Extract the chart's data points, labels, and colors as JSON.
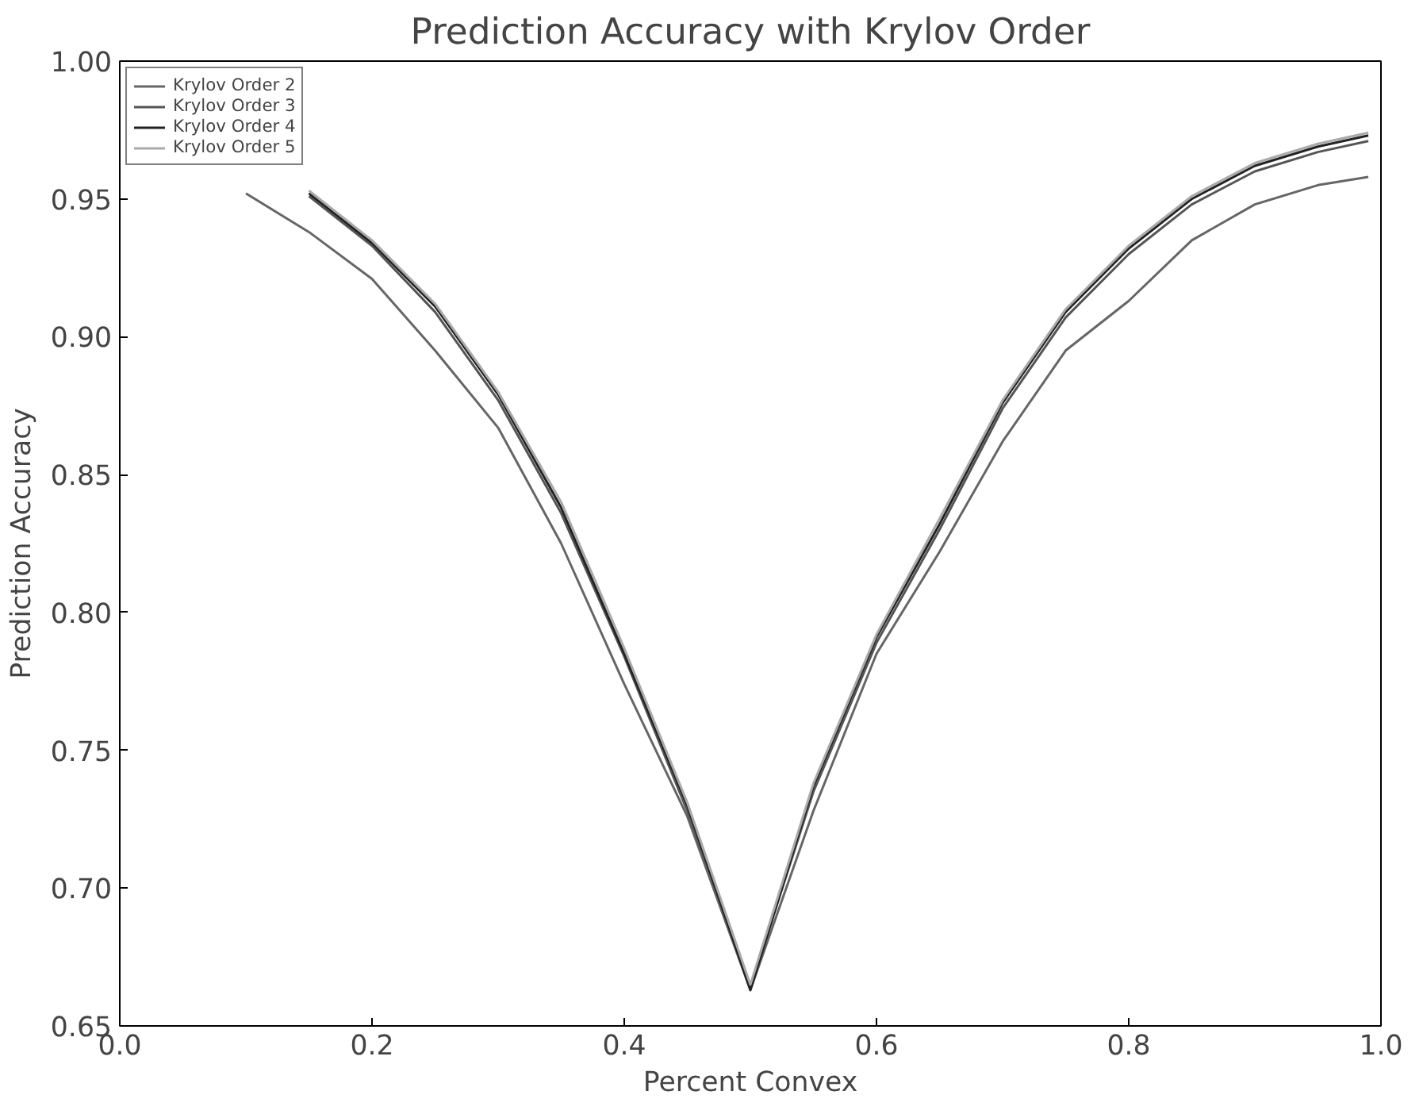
{
  "chart_data": {
    "type": "line",
    "title": "Prediction Accuracy with Krylov Order",
    "xlabel": "Percent Convex",
    "ylabel": "Prediction Accuracy",
    "x": [
      0.1,
      0.15,
      0.2,
      0.25,
      0.3,
      0.35,
      0.4,
      0.45,
      0.5,
      0.55,
      0.6,
      0.65,
      0.7,
      0.75,
      0.8,
      0.85,
      0.9,
      0.95,
      0.99
    ],
    "series": [
      {
        "name": "Krylov Order 2",
        "color": "#666666",
        "values": [
          0.952,
          0.938,
          0.921,
          0.895,
          0.867,
          0.825,
          0.774,
          0.726,
          0.663,
          0.728,
          0.785,
          0.822,
          0.862,
          0.895,
          0.913,
          0.935,
          0.948,
          0.955,
          0.958
        ]
      },
      {
        "name": "Krylov Order 3",
        "color": "#555555",
        "values": [
          null,
          0.951,
          0.933,
          0.909,
          0.877,
          0.836,
          0.784,
          0.728,
          0.664,
          0.735,
          0.789,
          0.83,
          0.874,
          0.907,
          0.93,
          0.948,
          0.96,
          0.967,
          0.971
        ]
      },
      {
        "name": "Krylov Order 4",
        "color": "#222222",
        "values": [
          null,
          0.952,
          0.934,
          0.911,
          0.879,
          0.838,
          0.785,
          0.73,
          0.663,
          0.737,
          0.791,
          0.832,
          0.876,
          0.909,
          0.932,
          0.95,
          0.962,
          0.969,
          0.973
        ]
      },
      {
        "name": "Krylov Order 5",
        "color": "#aaaaaa",
        "values": [
          null,
          0.953,
          0.935,
          0.912,
          0.88,
          0.84,
          0.787,
          0.731,
          0.665,
          0.738,
          0.792,
          0.834,
          0.877,
          0.91,
          0.933,
          0.951,
          0.963,
          0.97,
          0.974
        ]
      }
    ],
    "xlim": [
      0.0,
      1.0
    ],
    "ylim": [
      0.65,
      1.0
    ],
    "xticks": [
      {
        "value": 0.0,
        "label": "0.0"
      },
      {
        "value": 0.2,
        "label": "0.2"
      },
      {
        "value": 0.4,
        "label": "0.4"
      },
      {
        "value": 0.6,
        "label": "0.6"
      },
      {
        "value": 0.8,
        "label": "0.8"
      },
      {
        "value": 1.0,
        "label": "1.0"
      }
    ],
    "yticks": [
      {
        "value": 0.65,
        "label": "0.65"
      },
      {
        "value": 0.7,
        "label": "0.70"
      },
      {
        "value": 0.75,
        "label": "0.75"
      },
      {
        "value": 0.8,
        "label": "0.80"
      },
      {
        "value": 0.85,
        "label": "0.85"
      },
      {
        "value": 0.9,
        "label": "0.90"
      },
      {
        "value": 0.95,
        "label": "0.95"
      },
      {
        "value": 1.0,
        "label": "1.00"
      }
    ],
    "grid": false,
    "legend": "top left",
    "line_style": "solid",
    "marker": "none"
  }
}
